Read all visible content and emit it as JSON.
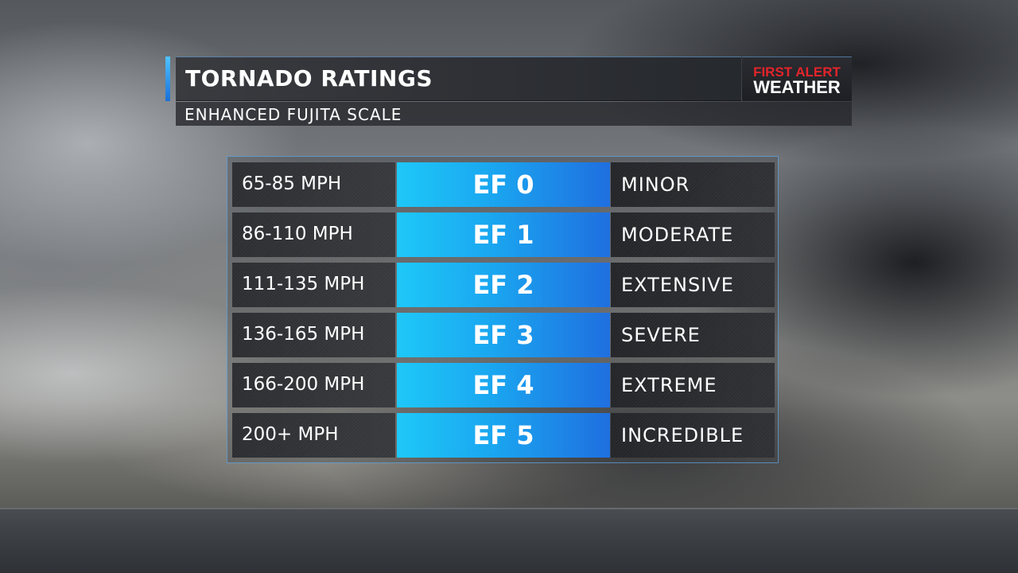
{
  "header": {
    "title": "TORNADO RATINGS",
    "subtitle": "ENHANCED FUJITA SCALE",
    "logo_line1": "FIRST ALERT",
    "logo_line2": "WEATHER"
  },
  "colors": {
    "rating_gradient_start": "#1ec8f8",
    "rating_gradient_end": "#1f6fe0",
    "logo_red": "#e3242b",
    "accent_blue": "#4fc3ff"
  },
  "scale": [
    {
      "speed": "65-85 MPH",
      "rating": "EF 0",
      "damage": "MINOR"
    },
    {
      "speed": "86-110 MPH",
      "rating": "EF 1",
      "damage": "MODERATE"
    },
    {
      "speed": "111-135 MPH",
      "rating": "EF 2",
      "damage": "EXTENSIVE"
    },
    {
      "speed": "136-165 MPH",
      "rating": "EF 3",
      "damage": "SEVERE"
    },
    {
      "speed": "166-200 MPH",
      "rating": "EF 4",
      "damage": "EXTREME"
    },
    {
      "speed": "200+ MPH",
      "rating": "EF 5",
      "damage": "INCREDIBLE"
    }
  ]
}
